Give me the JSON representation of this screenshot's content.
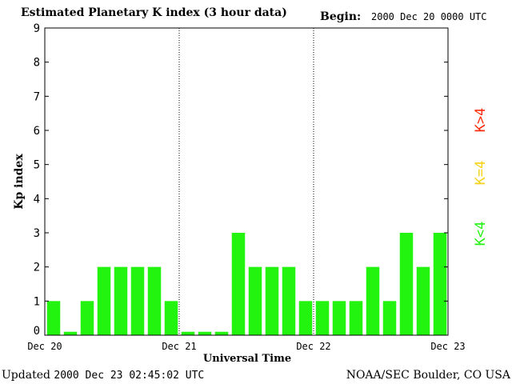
{
  "header": {
    "title": "Estimated Planetary K index (3 hour data)",
    "begin_label": "Begin:",
    "begin_value": "2000 Dec 20 0000 UTC"
  },
  "footer": {
    "updated_label": "Updated",
    "updated_value": "2000 Dec 23 02:45:02 UTC",
    "source": "NOAA/SEC Boulder, CO USA"
  },
  "legend": [
    {
      "label": "K>4",
      "color": "#ff2a0a"
    },
    {
      "label": "K=4",
      "color": "#f7d318"
    },
    {
      "label": "K<4",
      "color": "#22f30f"
    }
  ],
  "chart_data": {
    "type": "bar",
    "title": "Estimated Planetary K index (3 hour data)",
    "xlabel": "Universal Time",
    "ylabel": "Kp index",
    "ylim": [
      0,
      9
    ],
    "yticks": [
      0,
      1,
      2,
      3,
      4,
      5,
      6,
      7,
      8,
      9
    ],
    "xticks": [
      "Dec 20",
      "Dec 21",
      "Dec 22",
      "Dec 23"
    ],
    "day_separators": [
      "Dec 21",
      "Dec 22"
    ],
    "values": [
      1,
      0.1,
      1,
      2,
      2,
      2,
      2,
      1,
      0.1,
      0.1,
      0.1,
      3,
      2,
      2,
      2,
      1,
      1,
      1,
      1,
      2,
      1,
      3,
      2,
      3
    ],
    "bar_color": "#22f30f"
  }
}
